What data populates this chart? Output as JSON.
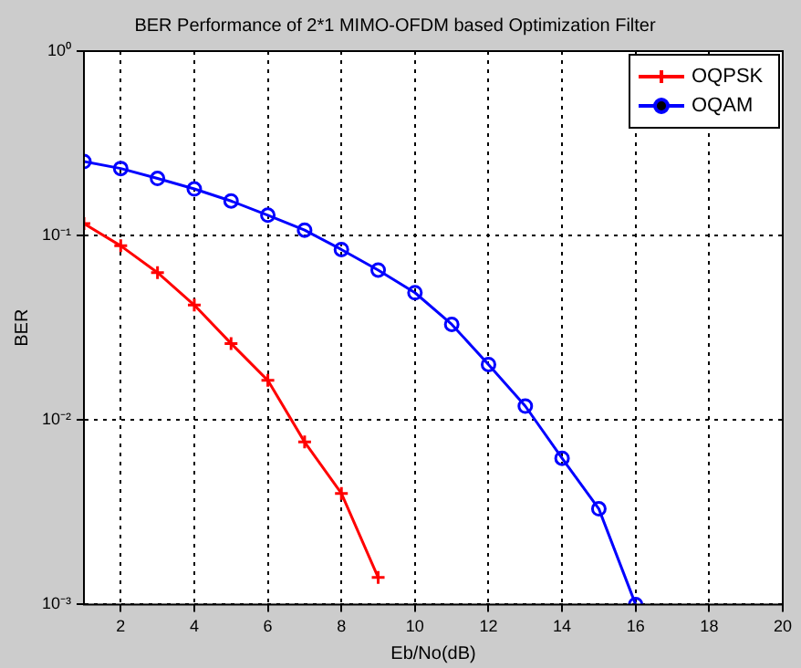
{
  "chart_data": {
    "type": "line",
    "title": "BER Performance of 2*1 MIMO-OFDM based Optimization Filter",
    "xlabel": "Eb/No(dB)",
    "ylabel": "BER",
    "series": [
      {
        "name": "OQPSK",
        "color": "#ff0000",
        "marker": "cross",
        "x": [
          1,
          2,
          3,
          4,
          5,
          6,
          7,
          8,
          9
        ],
        "values": [
          0.116,
          0.088,
          0.063,
          0.042,
          0.026,
          0.0164,
          0.0076,
          0.004,
          0.0014
        ]
      },
      {
        "name": "OQAM",
        "color": "#0000ff",
        "marker": "circle",
        "x": [
          1,
          2,
          3,
          4,
          5,
          6,
          7,
          8,
          9,
          10,
          11,
          12,
          13,
          14,
          15,
          16
        ],
        "values": [
          0.252,
          0.231,
          0.204,
          0.179,
          0.154,
          0.129,
          0.107,
          0.084,
          0.065,
          0.049,
          0.033,
          0.02,
          0.0119,
          0.0062,
          0.0033,
          0.001
        ]
      }
    ],
    "xlim": [
      1,
      20
    ],
    "xticks": [
      2,
      4,
      6,
      8,
      10,
      12,
      14,
      16,
      18,
      20
    ],
    "ylim": [
      0.001,
      1
    ],
    "yticks": [
      {
        "value": 0.001,
        "label": "10⁻³"
      },
      {
        "value": 0.01,
        "label": "10⁻²"
      },
      {
        "value": 0.1,
        "label": "10⁻¹"
      },
      {
        "value": 1,
        "label": "10⁰"
      }
    ],
    "log": "y",
    "grid": true,
    "legend": "top right",
    "line_style": "solid"
  }
}
